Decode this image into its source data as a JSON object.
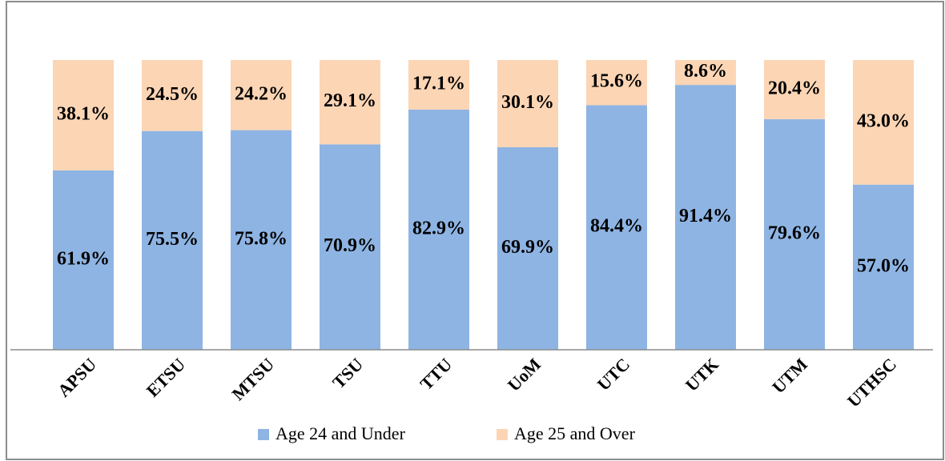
{
  "chart_data": {
    "type": "stacked_bar",
    "categories": [
      "APSU",
      "ETSU",
      "MTSU",
      "TSU",
      "TTU",
      "UoM",
      "UTC",
      "UTK",
      "UTM",
      "UTHSC"
    ],
    "series": [
      {
        "name": "Age 24 and Under",
        "color": "#8eb4e3",
        "values": [
          61.9,
          75.5,
          75.8,
          70.9,
          82.9,
          69.9,
          84.4,
          91.4,
          79.6,
          57.0
        ],
        "value_labels": [
          "61.9%",
          "75.5%",
          "75.8%",
          "70.9%",
          "82.9%",
          "69.9%",
          "84.4%",
          "91.4%",
          "79.6%",
          "57.0%"
        ]
      },
      {
        "name": "Age 25 and Over",
        "color": "#fcd5b5",
        "values": [
          38.1,
          24.5,
          24.2,
          29.1,
          17.1,
          30.1,
          15.6,
          8.6,
          20.4,
          43.0
        ],
        "value_labels": [
          "38.1%",
          "24.5%",
          "24.2%",
          "29.1%",
          "17.1%",
          "30.1%",
          "15.6%",
          "8.6%",
          "20.4%",
          "43.0%"
        ]
      }
    ],
    "ylim": [
      0,
      100
    ]
  }
}
